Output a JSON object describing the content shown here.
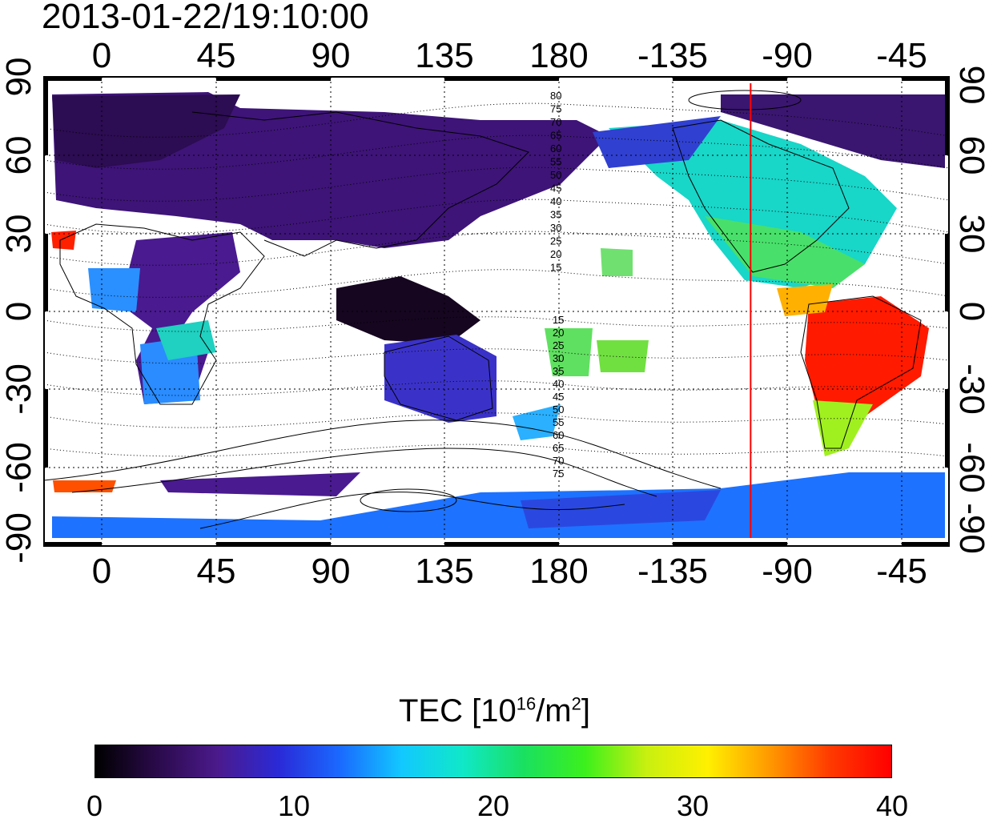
{
  "title": "2013-01-22/19:10:00",
  "axes": {
    "lon_ticks": [
      "0",
      "45",
      "90",
      "135",
      "180",
      "-135",
      "-90",
      "-45"
    ],
    "lat_ticks": [
      "90",
      "60",
      "30",
      "0",
      "-30",
      "-60",
      "-90"
    ]
  },
  "terminator_longitude": -105,
  "contour_labels_north": [
    "80",
    "75",
    "70",
    "65",
    "60",
    "55",
    "50",
    "45",
    "40",
    "35",
    "30",
    "25",
    "20",
    "15"
  ],
  "contour_labels_south": [
    "15",
    "20",
    "25",
    "30",
    "35",
    "40",
    "45",
    "50",
    "55",
    "60",
    "65",
    "70",
    "75"
  ],
  "colorbar": {
    "title": "TEC  [10",
    "title_exp": "16",
    "title_mid": "/m",
    "title_exp2": "2",
    "title_end": "]",
    "min": 0,
    "max": 40,
    "ticks": [
      "0",
      "10",
      "20",
      "30",
      "40"
    ],
    "colors": [
      "#000000",
      "#2a0a4a",
      "#4b1a8c",
      "#2a2ad8",
      "#1a6aff",
      "#12c8ff",
      "#10e8c8",
      "#1ae060",
      "#3cf01c",
      "#c8f010",
      "#fff000",
      "#ff9a00",
      "#ff3a00",
      "#ff0000"
    ]
  },
  "colors": {
    "terminator": "#ff0000",
    "coast": "#000000",
    "grid": "#000000"
  },
  "tec_regions": [
    {
      "name": "europe-asia-north",
      "tec": 3
    },
    {
      "name": "north-america",
      "tec": 17
    },
    {
      "name": "south-america",
      "tec": 38
    },
    {
      "name": "australia",
      "tec": 9
    },
    {
      "name": "antarctica",
      "tec": 11
    },
    {
      "name": "africa",
      "tec": 16
    }
  ]
}
